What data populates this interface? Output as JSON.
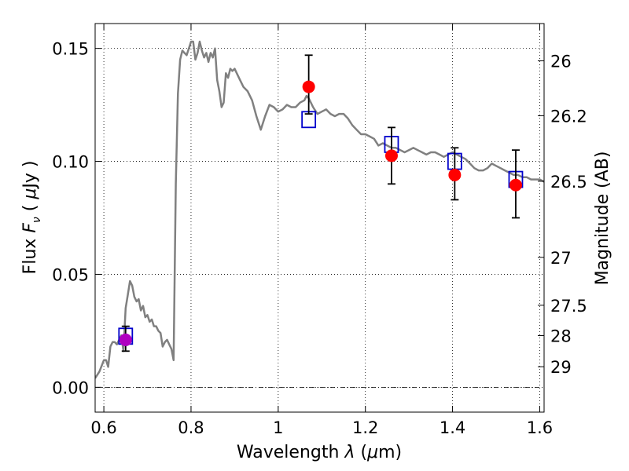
{
  "chart_data": {
    "type": "scatter",
    "xlabel_text": "Wavelength",
    "xlabel_symbol": "λ",
    "xlabel_unit_prefix": "(",
    "xlabel_unit_mu": "μ",
    "xlabel_unit_rest": "m)",
    "ylabel_text": "Flux",
    "ylabel_symbol": "F",
    "ylabel_sub": "ν",
    "ylabel_unit_prefix": "(",
    "ylabel_unit_mu": "μ",
    "ylabel_unit_rest": "Jy )",
    "y2label": "Magnitude (AB)",
    "xlim": [
      0.58,
      1.61
    ],
    "ylim": [
      -0.011,
      0.161
    ],
    "xticks": [
      0.6,
      0.8,
      1.0,
      1.2,
      1.4,
      1.6
    ],
    "xtick_labels": [
      "0.6",
      "0.8",
      "1",
      "1.2",
      "1.4",
      "1.6"
    ],
    "yticks": [
      0.0,
      0.05,
      0.1,
      0.15
    ],
    "ytick_labels": [
      "0.00",
      "0.05",
      "0.10",
      "0.15"
    ],
    "y2ticks": [
      {
        "label": "26",
        "flux": 0.1445
      },
      {
        "label": "26.2",
        "flux": 0.1202
      },
      {
        "label": "26.5",
        "flux": 0.0912
      },
      {
        "label": "27",
        "flux": 0.0575
      },
      {
        "label": "27.5",
        "flux": 0.0363
      },
      {
        "label": "28",
        "flux": 0.0229
      },
      {
        "label": "29",
        "flux": 0.0091
      }
    ],
    "grid": true,
    "zero_line": true,
    "spectrum": {
      "name": "model spectrum",
      "color": "#808080",
      "x": [
        0.58,
        0.59,
        0.6,
        0.605,
        0.61,
        0.615,
        0.62,
        0.625,
        0.63,
        0.635,
        0.64,
        0.645,
        0.65,
        0.655,
        0.66,
        0.665,
        0.67,
        0.675,
        0.68,
        0.685,
        0.69,
        0.695,
        0.7,
        0.705,
        0.71,
        0.715,
        0.72,
        0.725,
        0.73,
        0.735,
        0.74,
        0.745,
        0.75,
        0.755,
        0.76,
        0.765,
        0.77,
        0.775,
        0.78,
        0.785,
        0.79,
        0.795,
        0.8,
        0.805,
        0.81,
        0.815,
        0.82,
        0.825,
        0.83,
        0.835,
        0.84,
        0.845,
        0.85,
        0.855,
        0.86,
        0.865,
        0.87,
        0.875,
        0.88,
        0.885,
        0.89,
        0.895,
        0.9,
        0.91,
        0.92,
        0.93,
        0.94,
        0.95,
        0.96,
        0.97,
        0.98,
        0.99,
        1.0,
        1.01,
        1.02,
        1.03,
        1.04,
        1.05,
        1.06,
        1.065,
        1.07,
        1.08,
        1.09,
        1.1,
        1.11,
        1.12,
        1.13,
        1.14,
        1.15,
        1.16,
        1.17,
        1.18,
        1.19,
        1.2,
        1.21,
        1.22,
        1.23,
        1.24,
        1.25,
        1.26,
        1.27,
        1.28,
        1.29,
        1.3,
        1.31,
        1.32,
        1.33,
        1.34,
        1.35,
        1.36,
        1.37,
        1.38,
        1.39,
        1.4,
        1.41,
        1.42,
        1.43,
        1.44,
        1.45,
        1.46,
        1.47,
        1.48,
        1.49,
        1.5,
        1.51,
        1.52,
        1.53,
        1.54,
        1.55,
        1.56,
        1.57,
        1.58,
        1.59,
        1.6,
        1.61
      ],
      "y": [
        0.004,
        0.007,
        0.012,
        0.012,
        0.009,
        0.018,
        0.02,
        0.02,
        0.019,
        0.021,
        0.023,
        0.016,
        0.035,
        0.041,
        0.047,
        0.045,
        0.04,
        0.038,
        0.039,
        0.034,
        0.036,
        0.031,
        0.032,
        0.029,
        0.03,
        0.027,
        0.027,
        0.025,
        0.024,
        0.018,
        0.02,
        0.021,
        0.019,
        0.017,
        0.012,
        0.09,
        0.13,
        0.145,
        0.149,
        0.148,
        0.147,
        0.15,
        0.153,
        0.153,
        0.145,
        0.148,
        0.153,
        0.149,
        0.146,
        0.148,
        0.144,
        0.148,
        0.146,
        0.15,
        0.136,
        0.131,
        0.124,
        0.126,
        0.139,
        0.137,
        0.141,
        0.14,
        0.141,
        0.137,
        0.133,
        0.131,
        0.127,
        0.12,
        0.114,
        0.12,
        0.125,
        0.124,
        0.122,
        0.123,
        0.125,
        0.124,
        0.124,
        0.126,
        0.127,
        0.129,
        0.128,
        0.124,
        0.121,
        0.122,
        0.123,
        0.121,
        0.12,
        0.121,
        0.121,
        0.119,
        0.116,
        0.114,
        0.112,
        0.112,
        0.111,
        0.11,
        0.107,
        0.108,
        0.107,
        0.106,
        0.106,
        0.105,
        0.104,
        0.105,
        0.106,
        0.105,
        0.104,
        0.103,
        0.104,
        0.104,
        0.103,
        0.102,
        0.103,
        0.104,
        0.103,
        0.102,
        0.101,
        0.099,
        0.097,
        0.096,
        0.096,
        0.097,
        0.099,
        0.098,
        0.097,
        0.096,
        0.095,
        0.094,
        0.094,
        0.093,
        0.093,
        0.092,
        0.092,
        0.092,
        0.091
      ]
    },
    "model_points": {
      "name": "model photometry",
      "color": "#0000cc",
      "marker": "open-square",
      "x": [
        0.65,
        1.07,
        1.26,
        1.405,
        1.545
      ],
      "y": [
        0.0226,
        0.1185,
        0.1075,
        0.1,
        0.092
      ]
    },
    "observed_points": {
      "name": "observed photometry",
      "color": "#ff0000",
      "marker": "filled-circle",
      "x": [
        1.07,
        1.26,
        1.405,
        1.545
      ],
      "y": [
        0.133,
        0.1025,
        0.094,
        0.0895
      ],
      "err_low": [
        0.121,
        0.09,
        0.083,
        0.075
      ],
      "err_high": [
        0.147,
        0.115,
        0.106,
        0.105
      ]
    },
    "highlight_point": {
      "name": "optical detection",
      "color": "#b000c0",
      "marker": "filled-circle",
      "x": 0.65,
      "y": 0.021,
      "err_low": 0.016,
      "err_high": 0.027
    }
  }
}
